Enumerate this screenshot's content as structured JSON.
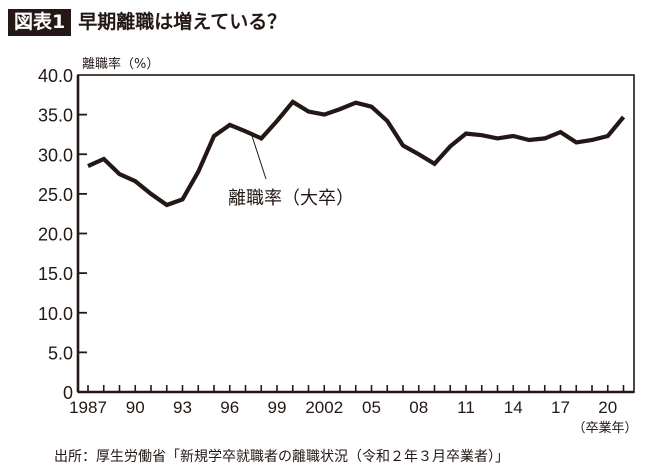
{
  "header": {
    "badge": "図表1",
    "title": "早期離職は増えている？"
  },
  "source": "出所：厚生労働省「新規学卒就職者の離職状況（令和２年３月卒業者）」",
  "colors": {
    "ink": "#231815",
    "background": "#ffffff"
  },
  "chart_data": {
    "type": "line",
    "title": "早期離職は増えている？",
    "ylabel": "離職率（%）",
    "xlabel": "（卒業年）",
    "ylim": [
      0,
      40
    ],
    "yticks": [
      0,
      5,
      10,
      15,
      20,
      25,
      30,
      35,
      40
    ],
    "ytick_labels": [
      "0",
      "5.0",
      "10.0",
      "15.0",
      "20.0",
      "25.0",
      "30.0",
      "35.0",
      "40.0"
    ],
    "xtick_labels": [
      "1987",
      "90",
      "93",
      "96",
      "99",
      "2002",
      "05",
      "08",
      "11",
      "14",
      "17",
      "20"
    ],
    "xtick_label_years": [
      1987,
      1990,
      1993,
      1996,
      1999,
      2002,
      2005,
      2008,
      2011,
      2014,
      2017,
      2020
    ],
    "grid": false,
    "annotation": "離職率（大卒）",
    "x": [
      1987,
      1988,
      1989,
      1990,
      1991,
      1992,
      1993,
      1994,
      1995,
      1996,
      1997,
      1998,
      1999,
      2000,
      2001,
      2002,
      2003,
      2004,
      2005,
      2006,
      2007,
      2008,
      2009,
      2010,
      2011,
      2012,
      2013,
      2014,
      2015,
      2016,
      2017,
      2018,
      2019,
      2020,
      2021
    ],
    "series": [
      {
        "name": "離職率（大卒）",
        "values": [
          28.5,
          29.4,
          27.5,
          26.6,
          25.0,
          23.6,
          24.3,
          27.8,
          32.3,
          33.7,
          32.9,
          32.0,
          34.2,
          36.6,
          35.4,
          35.0,
          35.7,
          36.5,
          36.0,
          34.2,
          31.1,
          30.0,
          28.8,
          31.0,
          32.6,
          32.4,
          32.0,
          32.3,
          31.8,
          32.0,
          32.8,
          31.5,
          31.8,
          32.3,
          34.7
        ]
      }
    ]
  }
}
